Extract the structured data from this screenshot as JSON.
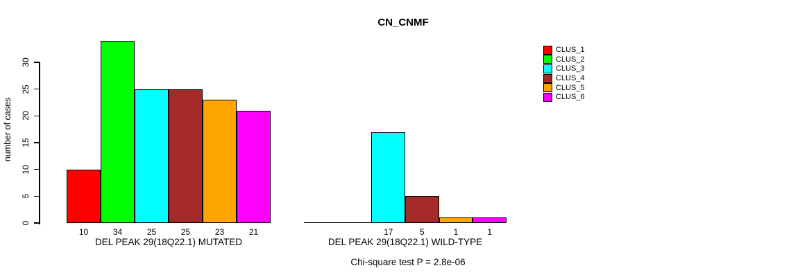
{
  "chart_data": {
    "type": "bar",
    "title": "CN_CNMF",
    "ylabel": "number of cases",
    "ylim": [
      0,
      34
    ],
    "yticks": [
      0,
      5,
      10,
      15,
      20,
      25,
      30
    ],
    "grid": false,
    "legend_position": "top-right",
    "categories": [
      "CLUS_1",
      "CLUS_2",
      "CLUS_3",
      "CLUS_4",
      "CLUS_5",
      "CLUS_6"
    ],
    "legend": [
      {
        "label": "CLUS_1",
        "color": "#FF0000"
      },
      {
        "label": "CLUS_2",
        "color": "#00FF00"
      },
      {
        "label": "CLUS_3",
        "color": "#00FFFF"
      },
      {
        "label": "CLUS_4",
        "color": "#A52A2A"
      },
      {
        "label": "CLUS_5",
        "color": "#FFA500"
      },
      {
        "label": "CLUS_6",
        "color": "#FF00FF"
      }
    ],
    "groups": [
      {
        "xlabel": "DEL PEAK 29(18Q22.1) MUTATED",
        "values": [
          10,
          34,
          25,
          25,
          23,
          21
        ],
        "bar_labels": [
          "10",
          "34",
          "25",
          "25",
          "23",
          "21"
        ]
      },
      {
        "xlabel": "DEL PEAK 29(18Q22.1) WILD-TYPE",
        "values": [
          0,
          0,
          17,
          5,
          1,
          1
        ],
        "bar_labels": [
          "",
          "",
          "17",
          "5",
          "1",
          "1"
        ]
      }
    ],
    "annotation": "Chi-square test P = 2.8e-06"
  }
}
